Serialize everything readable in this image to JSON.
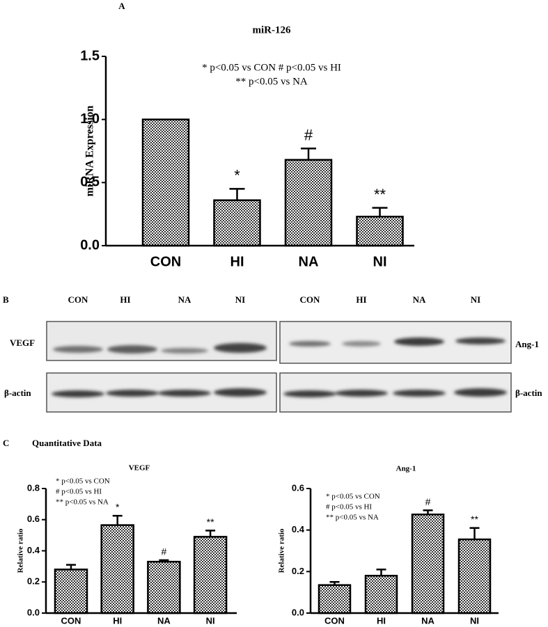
{
  "panel_a": "A",
  "blot": {
    "label": "B",
    "left_lanes": [
      "CON",
      "HI",
      "NA",
      "NI"
    ],
    "right_lanes": [
      "CON",
      "HI",
      "NA",
      "NI"
    ],
    "left_rows": [
      "VEGF",
      "β-actin"
    ],
    "right_rows": [
      "Ang-1",
      "β-actin"
    ]
  },
  "panel_c": {
    "label": "C",
    "title": "Quantitative Data"
  },
  "chart_data": [
    {
      "type": "bar",
      "title": "miR-126",
      "y_label": "miRNA Expression",
      "categories": [
        "CON",
        "HI",
        "NA",
        "NI"
      ],
      "values": [
        1.0,
        0.36,
        0.68,
        0.23
      ],
      "errors": [
        0,
        0.09,
        0.09,
        0.07
      ],
      "annotations": [
        null,
        "*",
        "#",
        "**"
      ],
      "legend_text": [
        "* p<0.05 vs CON # p<0.05 vs HI",
        "** p<0.05 vs NA"
      ],
      "color": "#333333",
      "ylim": [
        0,
        1.5
      ],
      "yticks": [
        {
          "value": 0,
          "label": "0.0"
        },
        {
          "value": 0.5,
          "label": "0.5"
        },
        {
          "value": 1,
          "label": "1.0"
        },
        {
          "value": 1.5,
          "label": "1.5"
        }
      ]
    },
    {
      "type": "bar",
      "title": "VEGF",
      "y_label": "Relative ratio",
      "categories": [
        "CON",
        "HI",
        "NA",
        "NI"
      ],
      "values": [
        0.28,
        0.565,
        0.33,
        0.49
      ],
      "errors": [
        0.03,
        0.06,
        0.01,
        0.04
      ],
      "annotations": [
        null,
        "*",
        "#",
        "**"
      ],
      "legend_text": [
        "* p<0.05 vs CON",
        "# p<0.05 vs HI",
        "** p<0.05 vs NA"
      ],
      "color": "#333333",
      "ylim": [
        0,
        0.8
      ],
      "yticks": [
        {
          "value": 0,
          "label": "0.0"
        },
        0.2,
        0.4,
        0.6,
        0.8
      ]
    },
    {
      "type": "bar",
      "title": "Ang-1",
      "y_label": "Relative ratio",
      "categories": [
        "CON",
        "HI",
        "NA",
        "NI"
      ],
      "values": [
        0.135,
        0.18,
        0.475,
        0.355
      ],
      "errors": [
        0.015,
        0.03,
        0.02,
        0.055
      ],
      "annotations": [
        null,
        null,
        "#",
        "**"
      ],
      "legend_text": [
        "* p<0.05 vs CON",
        "# p<0.05 vs HI",
        "** p<0.05 vs NA"
      ],
      "color": "#333333",
      "ylim": [
        0,
        0.6
      ],
      "yticks": [
        {
          "value": 0,
          "label": "0.0"
        },
        0.2,
        0.4,
        0.6
      ]
    }
  ]
}
